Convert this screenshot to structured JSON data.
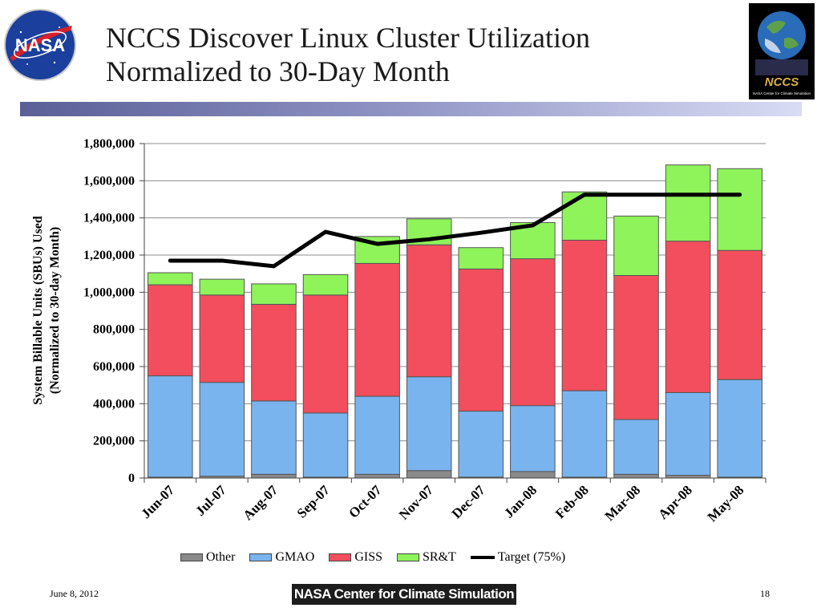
{
  "header": {
    "title_line1": "NCCS Discover Linux Cluster Utilization",
    "title_line2": "Normalized to 30-Day Month",
    "nasa_logo_text": "NASA",
    "nccs_logo_text": "NCCS",
    "nccs_logo_subtext": "NASA Center for Climate Simulation"
  },
  "footer": {
    "date": "June 8, 2012",
    "badge": "NASA Center for Climate Simulation",
    "page_number": "18"
  },
  "chart_data": {
    "type": "bar",
    "stacked": true,
    "categories": [
      "Jun-07",
      "Jul-07",
      "Aug-07",
      "Sep-07",
      "Oct-07",
      "Nov-07",
      "Dec-07",
      "Jan-08",
      "Feb-08",
      "Mar-08",
      "Apr-08",
      "May-08"
    ],
    "series": [
      {
        "name": "Other",
        "color": "#8a8a8a",
        "values": [
          5000,
          10000,
          20000,
          5000,
          20000,
          40000,
          5000,
          35000,
          5000,
          20000,
          15000,
          5000
        ]
      },
      {
        "name": "GMAO",
        "color": "#7ab4ee",
        "values": [
          545000,
          505000,
          395000,
          345000,
          420000,
          505000,
          355000,
          355000,
          465000,
          295000,
          445000,
          525000
        ]
      },
      {
        "name": "GISS",
        "color": "#f34e5d",
        "values": [
          490000,
          470000,
          520000,
          635000,
          715000,
          710000,
          765000,
          790000,
          810000,
          775000,
          815000,
          695000
        ]
      },
      {
        "name": "SR&T",
        "color": "#8ff35a",
        "values": [
          65000,
          85000,
          110000,
          110000,
          145000,
          140000,
          115000,
          195000,
          260000,
          320000,
          410000,
          440000
        ]
      }
    ],
    "line_series": {
      "name": "Target (75%)",
      "color": "#000000",
      "values": [
        1170000,
        1170000,
        1140000,
        1325000,
        1260000,
        1285000,
        1320000,
        1360000,
        1525000,
        1525000,
        1525000,
        1525000
      ]
    },
    "ylabel": "System Billable Units (SBUs) Used\n(Normalized to 30-day Month)",
    "ylabel_line1": "System Billable Units (SBUs) Used",
    "ylabel_line2": "(Normalized to 30-day Month)",
    "ylim": [
      0,
      1800000
    ],
    "yticks": [
      0,
      200000,
      400000,
      600000,
      800000,
      1000000,
      1200000,
      1400000,
      1600000,
      1800000
    ],
    "ytick_labels": [
      "0",
      "200,000",
      "400,000",
      "600,000",
      "800,000",
      "1,000,000",
      "1,200,000",
      "1,400,000",
      "1,600,000",
      "1,800,000"
    ],
    "grid": true,
    "legend_position": "bottom"
  }
}
